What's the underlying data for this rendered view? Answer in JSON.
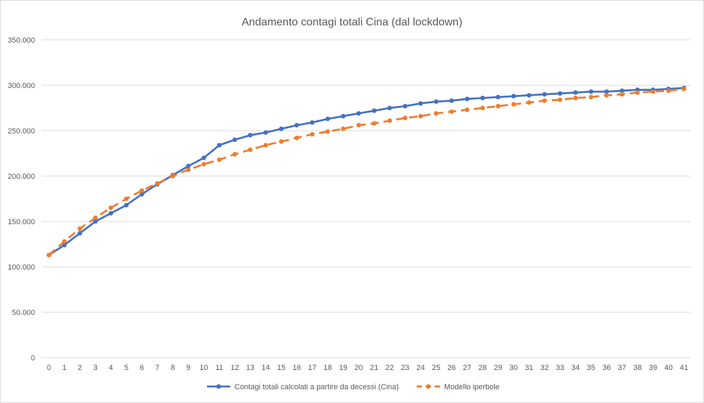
{
  "chart_data": {
    "type": "line",
    "title": "Andamento contagi totali Cina (dal lockdown)",
    "xlabel": "",
    "ylabel": "",
    "x": [
      0,
      1,
      2,
      3,
      4,
      5,
      6,
      7,
      8,
      9,
      10,
      11,
      12,
      13,
      14,
      15,
      16,
      17,
      18,
      19,
      20,
      21,
      22,
      23,
      24,
      25,
      26,
      27,
      28,
      29,
      30,
      31,
      32,
      33,
      34,
      35,
      36,
      37,
      38,
      39,
      40,
      41
    ],
    "x_tick_labels": [
      "0",
      "1",
      "2",
      "3",
      "4",
      "5",
      "6",
      "7",
      "8",
      "9",
      "10",
      "11",
      "12",
      "13",
      "14",
      "15",
      "16",
      "17",
      "18",
      "19",
      "20",
      "21",
      "22",
      "23",
      "24",
      "25",
      "26",
      "27",
      "28",
      "29",
      "30",
      "31",
      "32",
      "33",
      "34",
      "35",
      "36",
      "37",
      "38",
      "39",
      "40",
      "41"
    ],
    "ylim": [
      0,
      350000
    ],
    "y_ticks": [
      0,
      50000,
      100000,
      150000,
      200000,
      250000,
      300000,
      350000
    ],
    "y_tick_labels": [
      "0",
      "50.000",
      "100.000",
      "150.000",
      "200.000",
      "250.000",
      "300.000",
      "350.000"
    ],
    "grid": "horizontal",
    "legend_position": "bottom",
    "series": [
      {
        "name": "Contagi totali calcolati a partire da decessi (Cina)",
        "color": "#4472c4",
        "style": "solid",
        "values": [
          113000,
          124000,
          137000,
          150000,
          159000,
          168000,
          180000,
          191000,
          201000,
          211000,
          220000,
          234000,
          240000,
          245000,
          248000,
          252000,
          256000,
          259000,
          263000,
          266000,
          269000,
          272000,
          275000,
          277000,
          280000,
          282000,
          283000,
          285000,
          286000,
          287000,
          288000,
          289000,
          290000,
          291000,
          292000,
          293000,
          293000,
          294000,
          295000,
          295000,
          296000,
          297000
        ]
      },
      {
        "name": "Modello iperbole",
        "color": "#ed7d31",
        "style": "dashed",
        "values": [
          113000,
          128000,
          142000,
          154000,
          165000,
          175000,
          184000,
          192000,
          200000,
          207000,
          213000,
          218000,
          224000,
          229000,
          234000,
          238000,
          242000,
          246000,
          249000,
          252000,
          256000,
          258000,
          261000,
          264000,
          266000,
          269000,
          271000,
          273000,
          275000,
          277000,
          279000,
          281000,
          283000,
          284000,
          286000,
          287000,
          289000,
          290000,
          292000,
          293000,
          294000,
          296000
        ]
      }
    ]
  }
}
